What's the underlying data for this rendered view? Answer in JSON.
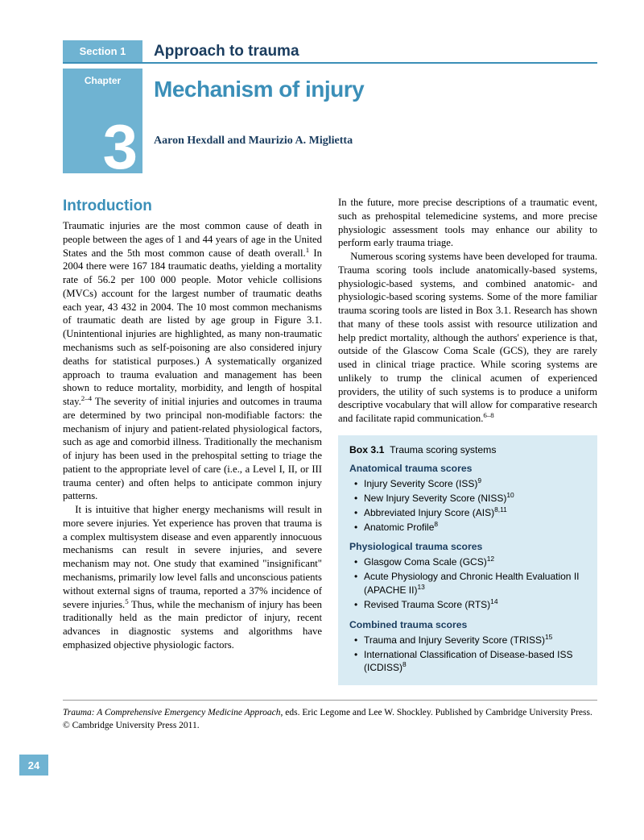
{
  "section": {
    "label": "Section 1",
    "title": "Approach to trauma"
  },
  "chapter": {
    "label": "Chapter",
    "number": "3",
    "title": "Mechanism of injury",
    "authors": "Aaron Hexdall and Maurizio A. Miglietta"
  },
  "intro_heading": "Introduction",
  "col1": {
    "p1a": "Traumatic injuries are the most common cause of death in people between the ages of 1 and 44 years of age in the United States and the 5th most common cause of death overall.",
    "p1b": " In 2004 there were 167 184 traumatic deaths, yielding a mortality rate of 56.2 per 100 000 people. Motor vehicle collisions (MVCs) account for the largest number of traumatic deaths each year, 43 432 in 2004. The 10 most common mechanisms of traumatic death are listed by age group in Figure 3.1. (Unintentional injuries are highlighted, as many non-traumatic mechanisms such as self-poisoning are also considered injury deaths for statistical purposes.) A systematically organized approach to trauma evaluation and management has been shown to reduce mortality, morbidity, and length of hospital stay.",
    "p1c": " The severity of initial injuries and outcomes in trauma are determined by two principal non-modifiable factors: the mechanism of injury and patient-related physiological factors, such as age and comorbid illness. Traditionally the mechanism of injury has been used in the prehospital setting to triage the patient to the appropriate level of care (i.e., a Level I, II, or III trauma center) and often helps to anticipate common injury patterns.",
    "p2a": "It is intuitive that higher energy mechanisms will result in more severe injuries. Yet experience has proven that trauma is a complex multisystem disease and even apparently innocuous mechanisms can result in severe injuries, and severe mechanism may not. One study that examined \"insignificant\" mechanisms, primarily low level falls and unconscious patients without external signs of trauma, reported a 37% incidence of severe injuries.",
    "p2b": " Thus, while the mechanism of injury has been traditionally held as the main predictor of injury, recent advances in diagnostic systems and algorithms have emphasized objective physiologic factors.",
    "sup1": "1",
    "sup24": "2–4",
    "sup5": "5"
  },
  "col2": {
    "p1": "In the future, more precise descriptions of a traumatic event, such as prehospital telemedicine systems, and more precise physiologic assessment tools may enhance our ability to perform early trauma triage.",
    "p2": "Numerous scoring systems have been developed for trauma. Trauma scoring tools include anatomically-based systems, physiologic-based systems, and combined anatomic- and physiologic-based scoring systems. Some of the more familiar trauma scoring tools are listed in Box 3.1. Research has shown that many of these tools assist with resource utilization and help predict mortality, although the authors' experience is that, outside of the Glascow Coma Scale (GCS), they are rarely used in clinical triage practice. While scoring systems are unlikely to trump the clinical acumen of experienced providers, the utility of such systems is to produce a uniform descriptive vocabulary that will allow for comparative research and facilitate rapid communication.",
    "sup68": "6–8"
  },
  "box": {
    "title_label": "Box 3.1",
    "title_text": "Trauma scoring systems",
    "sections": [
      {
        "heading": "Anatomical trauma scores",
        "items": [
          {
            "text": "Injury Severity Score (ISS)",
            "sup": "9"
          },
          {
            "text": "New Injury Severity Score (NISS)",
            "sup": "10"
          },
          {
            "text": "Abbreviated Injury Score (AIS)",
            "sup": "8,11"
          },
          {
            "text": "Anatomic Profile",
            "sup": "8"
          }
        ]
      },
      {
        "heading": "Physiological trauma scores",
        "items": [
          {
            "text": "Glasgow Coma Scale (GCS)",
            "sup": "12"
          },
          {
            "text": "Acute Physiology and Chronic Health Evaluation II (APACHE II)",
            "sup": "13"
          },
          {
            "text": "Revised Trauma Score (RTS)",
            "sup": "14"
          }
        ]
      },
      {
        "heading": "Combined trauma scores",
        "items": [
          {
            "text": "Trauma and Injury Severity Score (TRISS)",
            "sup": "15"
          },
          {
            "text": "International Classification of Disease-based ISS (ICDISS)",
            "sup": "8"
          }
        ]
      }
    ]
  },
  "footer": {
    "title": "Trauma: A Comprehensive Emergency Medicine Approach",
    "rest": ", eds. Eric Legome and Lee W. Shockley. Published by Cambridge University Press. © Cambridge University Press 2011."
  },
  "page_number": "24"
}
